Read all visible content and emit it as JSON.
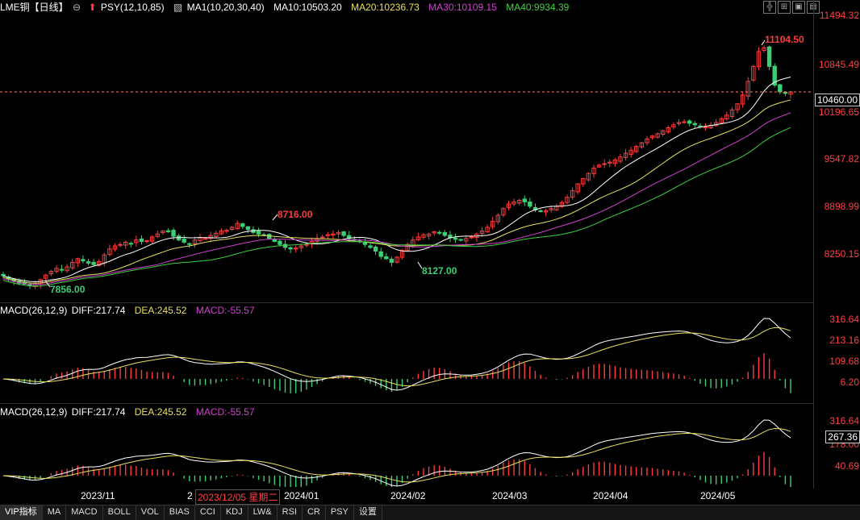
{
  "header": {
    "symbol": "LME铜【日线】",
    "psy": "PSY(12,10,85)",
    "ma_label": "MA1(10,20,30,40)",
    "ma10": "MA10:10503.20",
    "ma20": "MA20:10236.73",
    "ma30": "MA30:10109.15",
    "ma40": "MA40:9934.39"
  },
  "macd1": {
    "label": "MACD(26,12,9)",
    "diff": "DIFF:217.74",
    "dea": "DEA:245.52",
    "macd": "MACD:-55.57"
  },
  "macd2": {
    "label": "MACD(26,12,9)",
    "diff": "DIFF:217.74",
    "dea": "DEA:245.52",
    "macd": "MACD:-55.57"
  },
  "price_axis": [
    "11494.32",
    "10845.49",
    "10196.65",
    "9547.82",
    "8898.99",
    "8250.15"
  ],
  "current_price": "10460.00",
  "macd1_axis": [
    "316.64",
    "213.16",
    "109.68",
    "6.20"
  ],
  "macd2_axis": [
    "316.64",
    "267.36",
    "178.00",
    "40.69"
  ],
  "annotations": {
    "high": "11104.50",
    "mid_high": "8716.00",
    "low1": "7856.00",
    "low2": "8127.00"
  },
  "dates": [
    "2023/11",
    "2",
    "2023/12/05 星期二",
    "2024/01",
    "2024/02",
    "2024/03",
    "2024/04",
    "2024/05"
  ],
  "tabs": [
    "VIP指标",
    "MA",
    "MACD",
    "BOLL",
    "VOL",
    "BIAS",
    "CCI",
    "KDJ",
    "LW&",
    "RSI",
    "CR",
    "PSY",
    "设置"
  ],
  "colors": {
    "up": "#ff3b3b",
    "down": "#3ccf73",
    "ma10": "#ffffff",
    "ma20": "#e8e060",
    "ma30": "#d040d0",
    "ma40": "#40d040",
    "dea": "#e8e060"
  },
  "chart_data": {
    "type": "candlestick",
    "title": "LME铜【日线】",
    "ylim": [
      7700,
      11494.32
    ],
    "closes": [
      8000,
      7960,
      7930,
      7900,
      7890,
      7870,
      7900,
      7950,
      8010,
      8060,
      8100,
      8080,
      8120,
      8180,
      8230,
      8200,
      8170,
      8150,
      8190,
      8280,
      8360,
      8400,
      8420,
      8450,
      8430,
      8480,
      8460,
      8470,
      8520,
      8560,
      8600,
      8590,
      8530,
      8480,
      8450,
      8420,
      8480,
      8510,
      8500,
      8540,
      8570,
      8600,
      8610,
      8650,
      8700,
      8660,
      8620,
      8580,
      8560,
      8540,
      8500,
      8460,
      8420,
      8380,
      8360,
      8370,
      8400,
      8420,
      8460,
      8500,
      8520,
      8550,
      8560,
      8580,
      8540,
      8500,
      8480,
      8460,
      8420,
      8380,
      8330,
      8260,
      8230,
      8180,
      8250,
      8340,
      8420,
      8480,
      8520,
      8550,
      8560,
      8590,
      8570,
      8540,
      8510,
      8490,
      8480,
      8500,
      8520,
      8560,
      8600,
      8650,
      8730,
      8810,
      8900,
      8960,
      8990,
      9010,
      8990,
      8930,
      8880,
      8860,
      8870,
      8900,
      8930,
      8980,
      9050,
      9140,
      9230,
      9300,
      9370,
      9440,
      9480,
      9500,
      9520,
      9550,
      9590,
      9640,
      9680,
      9730,
      9780,
      9830,
      9870,
      9900,
      9940,
      9980,
      10020,
      10050,
      10060,
      10040,
      10020,
      10000,
      9990,
      10010,
      10050,
      10100,
      10150,
      10220,
      10300,
      10420,
      10600,
      10800,
      11000,
      11050,
      10800,
      10550,
      10460,
      10440,
      10460
    ]
  }
}
